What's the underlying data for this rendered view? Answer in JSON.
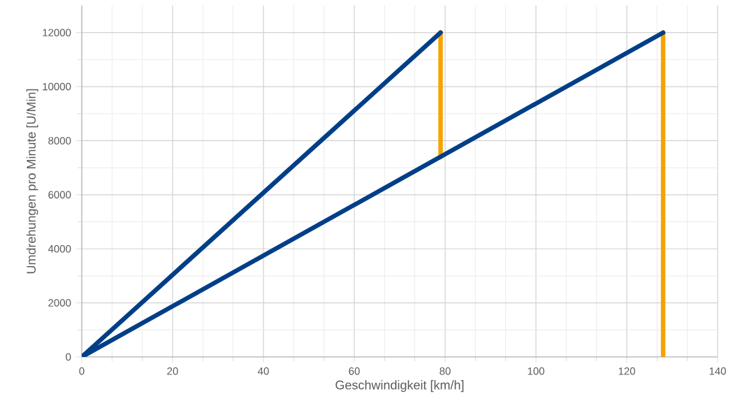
{
  "chart_data": {
    "type": "line",
    "xlabel": "Geschwindigkeit [km/h]",
    "ylabel": "Umdrehungen pro Minute [U/Min]",
    "series": [
      {
        "color": "#f5a300",
        "x": [
          79,
          79
        ],
        "values": [
          12000,
          7400
        ]
      },
      {
        "color": "#f5a300",
        "x": [
          128,
          128
        ],
        "values": [
          12000,
          0
        ]
      },
      {
        "color": "#003f87",
        "x": [
          0,
          79
        ],
        "values": [
          0,
          12000
        ]
      },
      {
        "color": "#003f87",
        "x": [
          0,
          128
        ],
        "values": [
          0,
          12000
        ]
      }
    ],
    "xlim": [
      0,
      140
    ],
    "xticks": [
      0,
      20,
      40,
      60,
      80,
      100,
      120,
      140
    ],
    "ylim": [
      0,
      13000
    ],
    "yticks": [
      0,
      2000,
      4000,
      6000,
      8000,
      10000,
      12000
    ],
    "grid": true,
    "marker": "none",
    "line_style": "solid"
  }
}
